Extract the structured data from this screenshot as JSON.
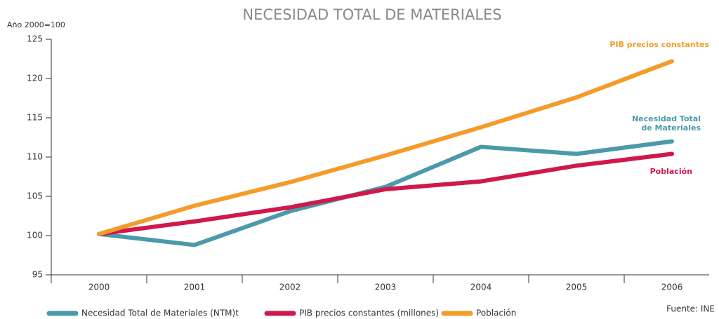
{
  "chart_data": {
    "type": "line",
    "title": "NECESIDAD TOTAL DE MATERIALES",
    "y_label": "Año 2000=100",
    "source": "Fuente: INE",
    "categories": [
      "2000",
      "2001",
      "2002",
      "2003",
      "2004",
      "2005",
      "2006"
    ],
    "series": [
      {
        "name": "Necesidad Total de Materiales (NTM)t",
        "color": "#4a9aaa",
        "values": [
          100.2,
          98.8,
          103.1,
          106.2,
          111.3,
          110.4,
          112.0
        ]
      },
      {
        "name": "PIB precios constantes (millones)",
        "color": "#d0184c",
        "values": [
          100.2,
          101.8,
          103.6,
          105.9,
          106.9,
          108.9,
          110.4
        ]
      },
      {
        "name": "Población",
        "color": "#f49b2a",
        "values": [
          100.2,
          103.8,
          106.8,
          110.2,
          113.8,
          117.6,
          122.2
        ]
      }
    ],
    "annotations": [
      {
        "lines": [
          "PIB precios constantes"
        ],
        "color": "#f49b2a"
      },
      {
        "lines": [
          "Necesidad Total",
          "de Materiales"
        ],
        "color": "#4a9aaa"
      },
      {
        "lines": [
          "Población"
        ],
        "color": "#d0184c"
      }
    ],
    "ylim": [
      95,
      125
    ],
    "yticks": [
      95,
      100,
      105,
      110,
      115,
      120,
      125
    ],
    "grid": false
  }
}
